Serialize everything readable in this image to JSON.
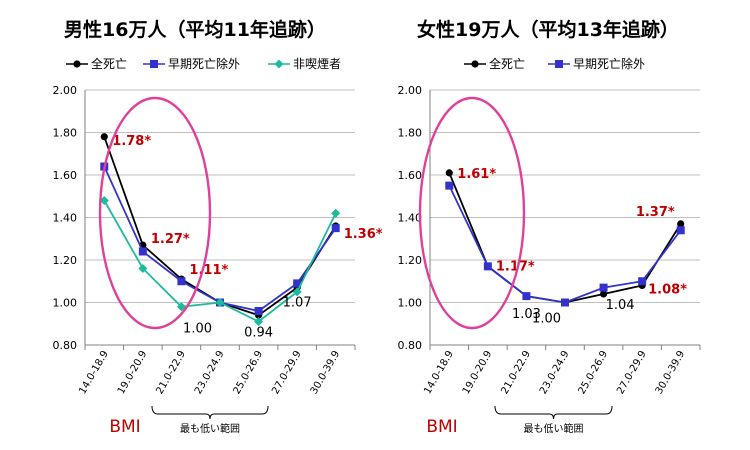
{
  "colors": {
    "all_cause": "#000000",
    "early_death_excluded": "#3333cc",
    "non_smoker": "#1abc9c",
    "annotation_red": "#c00000",
    "ellipse": "#e0409a",
    "grid": "#bfbfbf"
  },
  "chart_data": [
    {
      "type": "line",
      "title": "男性16万人（平均11年追跡）",
      "categories": [
        "14.0-18.9",
        "19.0-20.9",
        "21.0-22.9",
        "23.0-24.9",
        "25.0-26.9",
        "27.0-29.9",
        "30.0-39.9"
      ],
      "ylim": [
        0.8,
        2.0
      ],
      "yticks": [
        "0.80",
        "1.00",
        "1.20",
        "1.40",
        "1.60",
        "1.80",
        "2.00"
      ],
      "grid": true,
      "legend": "top",
      "xlabel": "BMI",
      "range_label": "最も低い範囲",
      "series": [
        {
          "name": "全死亡",
          "color": "#000000",
          "marker": "circle",
          "values": [
            1.78,
            1.27,
            1.11,
            1.0,
            0.94,
            1.07,
            1.36
          ]
        },
        {
          "name": "早期死亡除外",
          "color": "#3333cc",
          "marker": "square",
          "values": [
            1.64,
            1.24,
            1.1,
            1.0,
            0.96,
            1.09,
            1.35
          ]
        },
        {
          "name": "非喫煙者",
          "color": "#1abc9c",
          "marker": "diamond",
          "values": [
            1.48,
            1.16,
            0.98,
            1.0,
            0.91,
            1.05,
            1.42
          ]
        }
      ],
      "annotations": [
        {
          "text": "1.78*",
          "x": 0,
          "y": 1.78,
          "color": "red"
        },
        {
          "text": "1.27*",
          "x": 1,
          "y": 1.27,
          "color": "red"
        },
        {
          "text": "1.11*",
          "x": 2,
          "y": 1.11,
          "color": "red"
        },
        {
          "text": "1.00",
          "x": 3,
          "y": 1.0,
          "color": "black"
        },
        {
          "text": "0.94",
          "x": 4,
          "y": 0.94,
          "color": "black"
        },
        {
          "text": "1.07",
          "x": 5,
          "y": 1.07,
          "color": "black"
        },
        {
          "text": "1.36*",
          "x": 6,
          "y": 1.36,
          "color": "red"
        }
      ],
      "highlight_categories": [
        0,
        1
      ]
    },
    {
      "type": "line",
      "title": "女性19万人（平均13年追跡）",
      "categories": [
        "14.0-18.9",
        "19.0-20.9",
        "21.0-22.9",
        "23.0-24.9",
        "25.0-26.9",
        "27.0-29.9",
        "30.0-39.9"
      ],
      "ylim": [
        0.8,
        2.0
      ],
      "yticks": [
        "0.80",
        "1.00",
        "1.20",
        "1.40",
        "1.60",
        "1.80",
        "2.00"
      ],
      "grid": true,
      "legend": "top",
      "xlabel": "BMI",
      "range_label": "最も低い範囲",
      "series": [
        {
          "name": "全死亡",
          "color": "#000000",
          "marker": "circle",
          "values": [
            1.61,
            1.17,
            1.03,
            1.0,
            1.04,
            1.08,
            1.37
          ]
        },
        {
          "name": "早期死亡除外",
          "color": "#3333cc",
          "marker": "square",
          "values": [
            1.55,
            1.17,
            1.03,
            1.0,
            1.07,
            1.1,
            1.34
          ]
        }
      ],
      "annotations": [
        {
          "text": "1.61*",
          "x": 0,
          "y": 1.61,
          "color": "red"
        },
        {
          "text": "1.17*",
          "x": 1,
          "y": 1.17,
          "color": "red"
        },
        {
          "text": "1.03",
          "x": 2,
          "y": 1.03,
          "color": "black"
        },
        {
          "text": "1.00",
          "x": 3,
          "y": 1.0,
          "color": "black"
        },
        {
          "text": "1.04",
          "x": 4,
          "y": 1.04,
          "color": "black"
        },
        {
          "text": "1.08*",
          "x": 5,
          "y": 1.08,
          "color": "red"
        },
        {
          "text": "1.37*",
          "x": 6,
          "y": 1.37,
          "color": "red"
        }
      ],
      "highlight_categories": [
        0,
        1
      ]
    }
  ]
}
